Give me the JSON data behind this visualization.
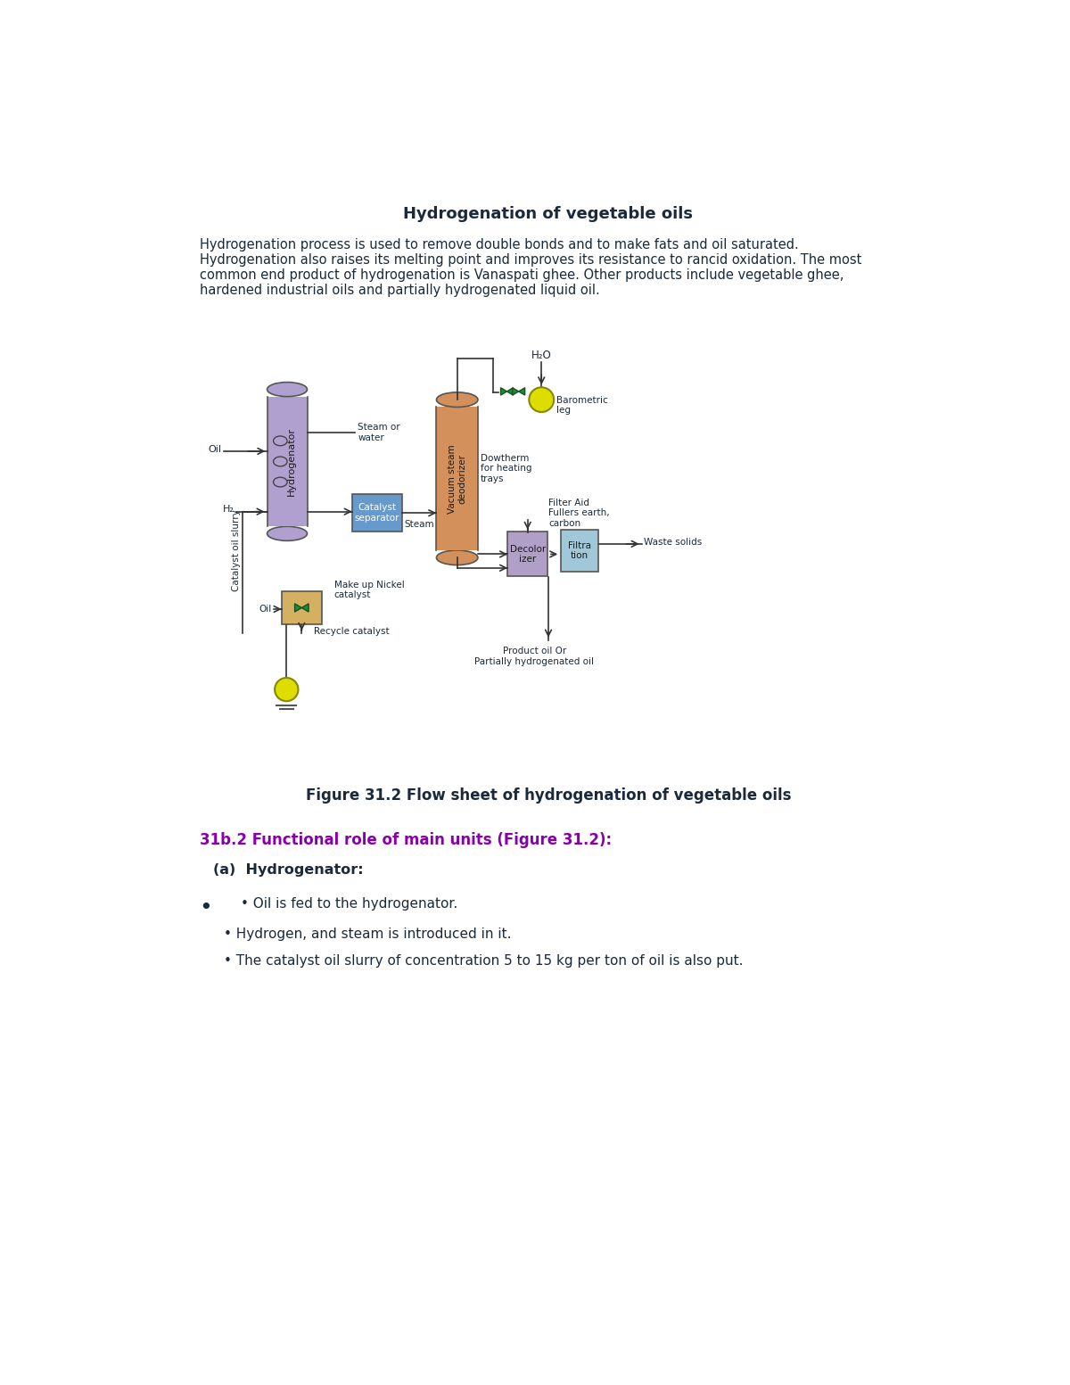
{
  "title": "Hydrogenation of vegetable oils",
  "intro_lines": [
    "Hydrogenation process is used to remove double bonds and to make fats and oil saturated.",
    "Hydrogenation also raises its melting point and improves its resistance to rancid oxidation. The most",
    "common end product of hydrogenation is Vanaspati ghee. Other products include vegetable ghee,",
    "hardened industrial oils and partially hydrogenated liquid oil."
  ],
  "figure_caption": "Figure 31.2 Flow sheet of hydrogenation of vegetable oils",
  "section_title": "31b.2 Functional role of main units (Figure 31.2):",
  "subsection": "(a)  Hydrogenator:",
  "bullet0_outer": "•",
  "bullet0": "• Oil is fed to the hydrogenator.",
  "bullet1": "• Hydrogen, and steam is introduced in it.",
  "bullet2": "• The catalyst oil slurry of concentration 5 to 15 kg per ton of oil is also put.",
  "bg_color": "#ffffff",
  "text_color": "#1a2a3a",
  "title_color": "#1a2a3a",
  "section_color": "#8800aa",
  "hydrogenator_color": "#b0a0d0",
  "deodorizer_color": "#d4905a",
  "catalyst_sep_color": "#6699cc",
  "decolorizer_color": "#b0a0c8",
  "filtration_color": "#a0c8d8",
  "nickel_box_color": "#d4b060",
  "barometric_color": "#dddd00",
  "valve_color": "#228833",
  "line_color": "#333333"
}
